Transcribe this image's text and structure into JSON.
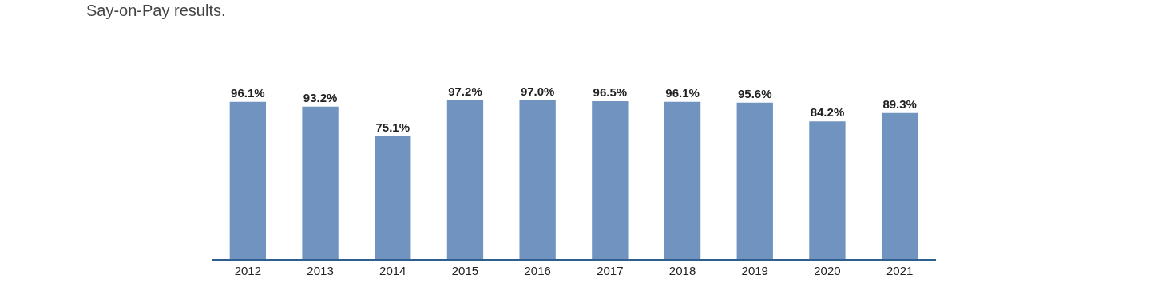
{
  "chart_data": {
    "type": "bar",
    "title": "Say-on-Pay results.",
    "categories": [
      "2012",
      "2013",
      "2014",
      "2015",
      "2016",
      "2017",
      "2018",
      "2019",
      "2020",
      "2021"
    ],
    "values": [
      96.1,
      93.2,
      75.1,
      97.2,
      97.0,
      96.5,
      96.1,
      95.6,
      84.2,
      89.3
    ],
    "value_labels": [
      "96.1%",
      "93.2%",
      "75.1%",
      "97.2%",
      "97.0%",
      "96.5%",
      "96.1%",
      "95.6%",
      "84.2%",
      "89.3%"
    ],
    "color": "#7093c0"
  }
}
